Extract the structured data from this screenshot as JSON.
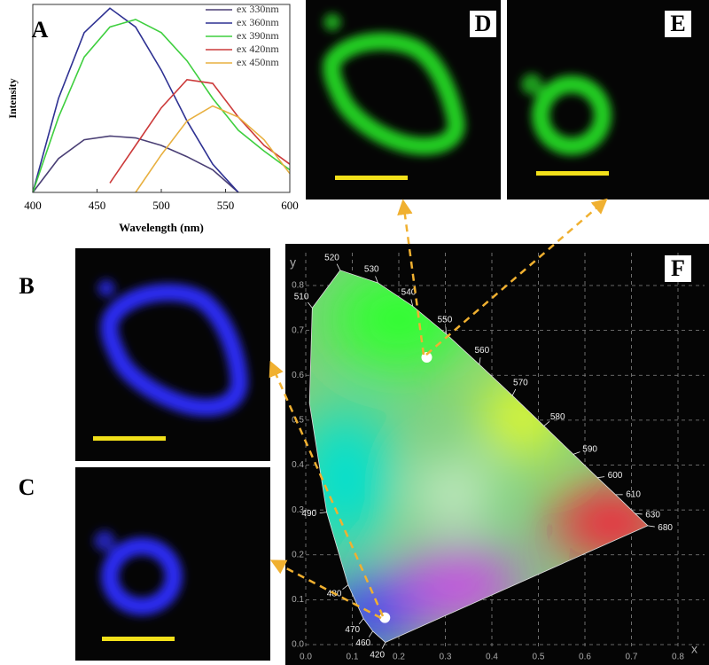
{
  "labels": [
    "A",
    "B",
    "C",
    "D",
    "E",
    "F"
  ],
  "chart_data": [
    {
      "type": "line",
      "xlabel": "Wavelength (nm)",
      "ylabel": "Intensity",
      "x": [
        400,
        420,
        440,
        460,
        480,
        500,
        520,
        540,
        560,
        580,
        600
      ],
      "xlim": [
        400,
        600
      ],
      "xticks": [
        400,
        450,
        500,
        550,
        600
      ],
      "ylim": [
        0,
        100
      ],
      "legend": "upper right",
      "series": [
        {
          "name": "ex 330nm",
          "color": "#4a3f75",
          "values": [
            0,
            18,
            28,
            30,
            29,
            25,
            19,
            12,
            0,
            null,
            null
          ]
        },
        {
          "name": "ex 360nm",
          "color": "#2e3192",
          "values": [
            0,
            50,
            85,
            98,
            88,
            65,
            38,
            15,
            0,
            null,
            null
          ]
        },
        {
          "name": "ex 390nm",
          "color": "#3fcf3f",
          "values": [
            0,
            40,
            72,
            88,
            92,
            85,
            70,
            50,
            33,
            22,
            12
          ]
        },
        {
          "name": "ex 420nm",
          "color": "#cc3a3a",
          "values": [
            null,
            null,
            null,
            5,
            25,
            45,
            60,
            58,
            40,
            25,
            15
          ]
        },
        {
          "name": "ex 450nm",
          "color": "#e8b040",
          "values": [
            null,
            null,
            null,
            null,
            0,
            20,
            38,
            46,
            40,
            28,
            10
          ]
        }
      ]
    },
    {
      "type": "chromaticity",
      "xlabel": "x",
      "ylabel": "y",
      "xlim": [
        0,
        0.8
      ],
      "xticks": [
        {
          "value": 0,
          "label": "0.0"
        },
        0.1,
        0.2,
        0.3,
        0.4,
        0.5,
        0.6,
        0.7,
        0.8
      ],
      "ylim": [
        0,
        0.8
      ],
      "yticks": [
        {
          "value": 0,
          "label": "0.0"
        },
        0.1,
        0.2,
        0.3,
        0.4,
        0.5,
        0.6,
        0.7,
        0.8
      ],
      "grid": true,
      "categories": [
        "420",
        "460",
        "470",
        "480",
        "490",
        null,
        "510",
        "520",
        "530",
        "540",
        "550",
        "560",
        "570",
        "580",
        "590",
        "600",
        "610",
        "630",
        "680"
      ],
      "x": [
        0.171,
        0.144,
        0.124,
        0.091,
        0.045,
        0.008,
        0.014,
        0.074,
        0.155,
        0.23,
        0.302,
        0.373,
        0.444,
        0.512,
        0.575,
        0.627,
        0.666,
        0.708,
        0.735
      ],
      "values": [
        0.005,
        0.03,
        0.058,
        0.133,
        0.295,
        0.538,
        0.75,
        0.834,
        0.806,
        0.754,
        0.692,
        0.624,
        0.555,
        0.487,
        0.424,
        0.372,
        0.334,
        0.292,
        0.265
      ],
      "points": {
        "x": [
          0.26,
          0.17
        ],
        "values": [
          0.64,
          0.06
        ]
      }
    }
  ]
}
